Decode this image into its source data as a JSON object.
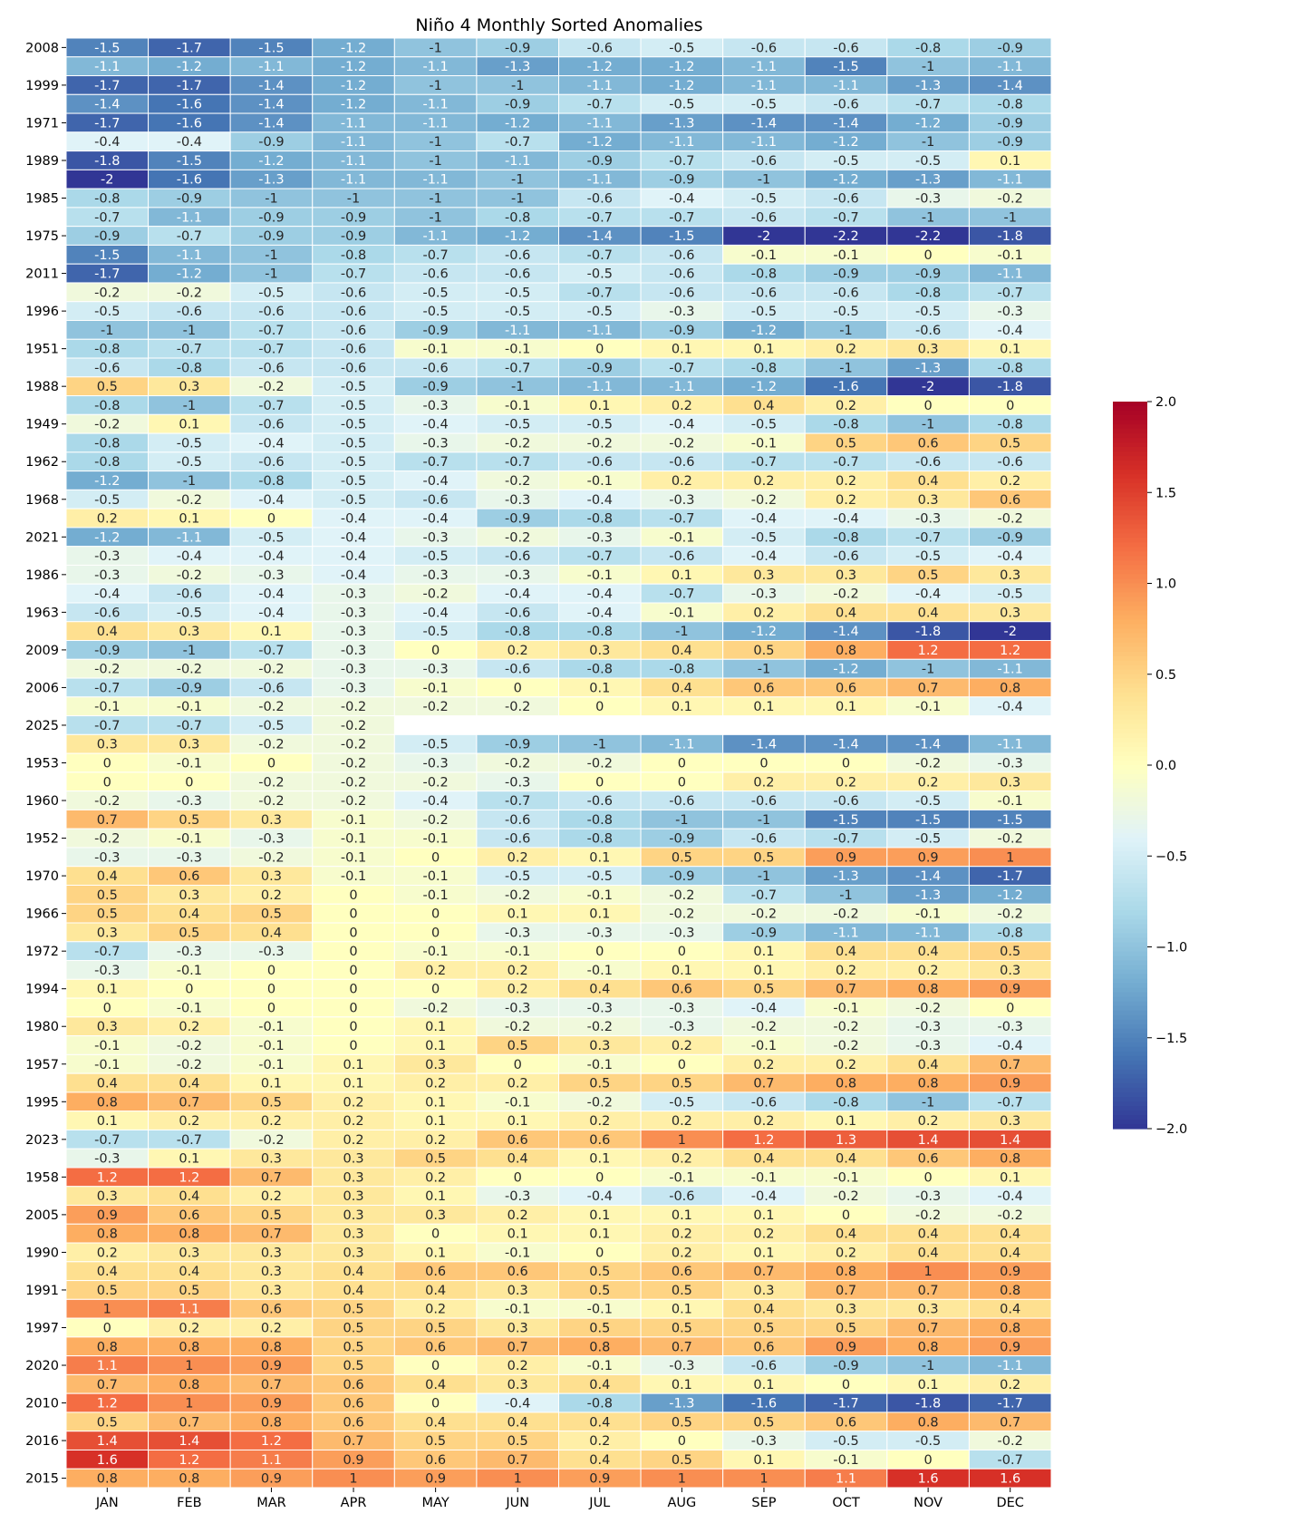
{
  "chart_data": {
    "type": "heatmap",
    "title": "Niño 4 Monthly Sorted Anomalies",
    "columns": [
      "JAN",
      "FEB",
      "MAR",
      "APR",
      "MAY",
      "JUN",
      "JUL",
      "AUG",
      "SEP",
      "OCT",
      "NOV",
      "DEC"
    ],
    "row_labels": [
      "2008",
      "",
      "1999",
      "",
      "1971",
      "",
      "1989",
      "",
      "1985",
      "",
      "1975",
      "",
      "2011",
      "",
      "1996",
      "",
      "1951",
      "",
      "1988",
      "",
      "1949",
      "",
      "1962",
      "",
      "1968",
      "",
      "2021",
      "",
      "1986",
      "",
      "1963",
      "",
      "2009",
      "",
      "2006",
      "",
      "2025",
      "",
      "1953",
      "",
      "1960",
      "",
      "1952",
      "",
      "1970",
      "",
      "1966",
      "",
      "1972",
      "",
      "1994",
      "",
      "1980",
      "",
      "1957",
      "",
      "1995",
      "",
      "2023",
      "",
      "1958",
      "",
      "2005",
      "",
      "1990",
      "",
      "1991",
      "",
      "1997",
      "",
      "2020",
      "",
      "2010",
      "",
      "2016",
      "",
      "2015"
    ],
    "values": [
      [
        -1.5,
        -1.7,
        -1.5,
        -1.2,
        -1,
        -0.9,
        -0.6,
        -0.5,
        -0.6,
        -0.6,
        -0.8,
        -0.9
      ],
      [
        -1.1,
        -1.2,
        -1.1,
        -1.2,
        -1.1,
        -1.3,
        -1.2,
        -1.2,
        -1.1,
        -1.5,
        -1,
        -1.1
      ],
      [
        -1.7,
        -1.7,
        -1.4,
        -1.2,
        -1,
        -1,
        -1.1,
        -1.2,
        -1.1,
        -1.1,
        -1.3,
        -1.4
      ],
      [
        -1.4,
        -1.6,
        -1.4,
        -1.2,
        -1.1,
        -0.9,
        -0.7,
        -0.5,
        -0.5,
        -0.6,
        -0.7,
        -0.8
      ],
      [
        -1.7,
        -1.6,
        -1.4,
        -1.1,
        -1.1,
        -1.2,
        -1.1,
        -1.3,
        -1.4,
        -1.4,
        -1.2,
        -0.9
      ],
      [
        -0.4,
        -0.4,
        -0.9,
        -1.1,
        -1,
        -0.7,
        -1.2,
        -1.1,
        -1.1,
        -1.2,
        -1,
        -0.9
      ],
      [
        -1.8,
        -1.5,
        -1.2,
        -1.1,
        -1,
        -1.1,
        -0.9,
        -0.7,
        -0.6,
        -0.5,
        -0.5,
        0.1
      ],
      [
        -2,
        -1.6,
        -1.3,
        -1.1,
        -1.1,
        -1,
        -1.1,
        -0.9,
        -1,
        -1.2,
        -1.3,
        -1.1
      ],
      [
        -0.8,
        -0.9,
        -1,
        -1,
        -1,
        -1,
        -0.6,
        -0.4,
        -0.5,
        -0.6,
        -0.3,
        -0.2
      ],
      [
        -0.7,
        -1.1,
        -0.9,
        -0.9,
        -1,
        -0.8,
        -0.7,
        -0.7,
        -0.6,
        -0.7,
        -1,
        -1
      ],
      [
        -0.9,
        -0.7,
        -0.9,
        -0.9,
        -1.1,
        -1.2,
        -1.4,
        -1.5,
        -2,
        -2.2,
        -2.2,
        -1.8
      ],
      [
        -1.5,
        -1.1,
        -1,
        -0.8,
        -0.7,
        -0.6,
        -0.7,
        -0.6,
        -0.1,
        -0.1,
        0,
        -0.1
      ],
      [
        -1.7,
        -1.2,
        -1,
        -0.7,
        -0.6,
        -0.6,
        -0.5,
        -0.6,
        -0.8,
        -0.9,
        -0.9,
        -1.1
      ],
      [
        -0.2,
        -0.2,
        -0.5,
        -0.6,
        -0.5,
        -0.5,
        -0.7,
        -0.6,
        -0.6,
        -0.6,
        -0.8,
        -0.7
      ],
      [
        -0.5,
        -0.6,
        -0.6,
        -0.6,
        -0.5,
        -0.5,
        -0.5,
        -0.3,
        -0.5,
        -0.5,
        -0.5,
        -0.3
      ],
      [
        -1,
        -1,
        -0.7,
        -0.6,
        -0.9,
        -1.1,
        -1.1,
        -0.9,
        -1.2,
        -1,
        -0.6,
        -0.4
      ],
      [
        -0.8,
        -0.7,
        -0.7,
        -0.6,
        -0.1,
        -0.1,
        0,
        0.1,
        0.1,
        0.2,
        0.3,
        0.1
      ],
      [
        -0.6,
        -0.8,
        -0.6,
        -0.6,
        -0.6,
        -0.7,
        -0.9,
        -0.7,
        -0.8,
        -1,
        -1.3,
        -0.8
      ],
      [
        0.5,
        0.3,
        -0.2,
        -0.5,
        -0.9,
        -1,
        -1.1,
        -1.1,
        -1.2,
        -1.6,
        -2,
        -1.8
      ],
      [
        -0.8,
        -1,
        -0.7,
        -0.5,
        -0.3,
        -0.1,
        0.1,
        0.2,
        0.4,
        0.2,
        0,
        0
      ],
      [
        -0.2,
        0.1,
        -0.6,
        -0.5,
        -0.4,
        -0.5,
        -0.5,
        -0.4,
        -0.5,
        -0.8,
        -1,
        -0.8
      ],
      [
        -0.8,
        -0.5,
        -0.4,
        -0.5,
        -0.3,
        -0.2,
        -0.2,
        -0.2,
        -0.1,
        0.5,
        0.6,
        0.5
      ],
      [
        -0.8,
        -0.5,
        -0.6,
        -0.5,
        -0.7,
        -0.7,
        -0.6,
        -0.6,
        -0.7,
        -0.7,
        -0.6,
        -0.6
      ],
      [
        -1.2,
        -1,
        -0.8,
        -0.5,
        -0.4,
        -0.2,
        -0.1,
        0.2,
        0.2,
        0.2,
        0.4,
        0.2
      ],
      [
        -0.5,
        -0.2,
        -0.4,
        -0.5,
        -0.6,
        -0.3,
        -0.4,
        -0.3,
        -0.2,
        0.2,
        0.3,
        0.6
      ],
      [
        0.2,
        0.1,
        0,
        -0.4,
        -0.4,
        -0.9,
        -0.8,
        -0.7,
        -0.4,
        -0.4,
        -0.3,
        -0.2
      ],
      [
        -1.2,
        -1.1,
        -0.5,
        -0.4,
        -0.3,
        -0.2,
        -0.3,
        -0.1,
        -0.5,
        -0.8,
        -0.7,
        -0.9
      ],
      [
        -0.3,
        -0.4,
        -0.4,
        -0.4,
        -0.5,
        -0.6,
        -0.7,
        -0.6,
        -0.4,
        -0.6,
        -0.5,
        -0.4
      ],
      [
        -0.3,
        -0.2,
        -0.3,
        -0.4,
        -0.3,
        -0.3,
        -0.1,
        0.1,
        0.3,
        0.3,
        0.5,
        0.3
      ],
      [
        -0.4,
        -0.6,
        -0.4,
        -0.3,
        -0.2,
        -0.4,
        -0.4,
        -0.7,
        -0.3,
        -0.2,
        -0.4,
        -0.5
      ],
      [
        -0.6,
        -0.5,
        -0.4,
        -0.3,
        -0.4,
        -0.6,
        -0.4,
        -0.1,
        0.2,
        0.4,
        0.4,
        0.3
      ],
      [
        0.4,
        0.3,
        0.1,
        -0.3,
        -0.5,
        -0.8,
        -0.8,
        -1,
        -1.2,
        -1.4,
        -1.8,
        -2
      ],
      [
        -0.9,
        -1,
        -0.7,
        -0.3,
        0,
        0.2,
        0.3,
        0.4,
        0.5,
        0.8,
        1.2,
        1.2
      ],
      [
        -0.2,
        -0.2,
        -0.2,
        -0.3,
        -0.3,
        -0.6,
        -0.8,
        -0.8,
        -1,
        -1.2,
        -1,
        -1.1
      ],
      [
        -0.7,
        -0.9,
        -0.6,
        -0.3,
        -0.1,
        0,
        0.1,
        0.4,
        0.6,
        0.6,
        0.7,
        0.8
      ],
      [
        -0.1,
        -0.1,
        -0.2,
        -0.2,
        -0.2,
        -0.2,
        0,
        0.1,
        0.1,
        0.1,
        -0.1,
        -0.4
      ],
      [
        -0.7,
        -0.7,
        -0.5,
        -0.2,
        null,
        null,
        null,
        null,
        null,
        null,
        null,
        null
      ],
      [
        0.3,
        0.3,
        -0.2,
        -0.2,
        -0.5,
        -0.9,
        -1,
        -1.1,
        -1.4,
        -1.4,
        -1.4,
        -1.1
      ],
      [
        0,
        -0.1,
        0,
        -0.2,
        -0.3,
        -0.2,
        -0.2,
        0,
        0,
        0,
        -0.2,
        -0.3
      ],
      [
        0,
        0,
        -0.2,
        -0.2,
        -0.2,
        -0.3,
        0,
        0,
        0.2,
        0.2,
        0.2,
        0.3
      ],
      [
        -0.2,
        -0.3,
        -0.2,
        -0.2,
        -0.4,
        -0.7,
        -0.6,
        -0.6,
        -0.6,
        -0.6,
        -0.5,
        -0.1
      ],
      [
        0.7,
        0.5,
        0.3,
        -0.1,
        -0.2,
        -0.6,
        -0.8,
        -1,
        -1,
        -1.5,
        -1.5,
        -1.5
      ],
      [
        -0.2,
        -0.1,
        -0.3,
        -0.1,
        -0.1,
        -0.6,
        -0.8,
        -0.9,
        -0.6,
        -0.7,
        -0.5,
        -0.2
      ],
      [
        -0.3,
        -0.3,
        -0.2,
        -0.1,
        0,
        0.2,
        0.1,
        0.5,
        0.5,
        0.9,
        0.9,
        1
      ],
      [
        0.4,
        0.6,
        0.3,
        -0.1,
        -0.1,
        -0.5,
        -0.5,
        -0.9,
        -1,
        -1.3,
        -1.4,
        -1.7
      ],
      [
        0.5,
        0.3,
        0.2,
        0,
        -0.1,
        -0.2,
        -0.1,
        -0.2,
        -0.7,
        -1,
        -1.3,
        -1.2
      ],
      [
        0.5,
        0.4,
        0.5,
        0,
        0,
        0.1,
        0.1,
        -0.2,
        -0.2,
        -0.2,
        -0.1,
        -0.2
      ],
      [
        0.3,
        0.5,
        0.4,
        0,
        0,
        -0.3,
        -0.3,
        -0.3,
        -0.9,
        -1.1,
        -1.1,
        -0.8
      ],
      [
        -0.7,
        -0.3,
        -0.3,
        0,
        -0.1,
        -0.1,
        0,
        0,
        0.1,
        0.4,
        0.4,
        0.5
      ],
      [
        -0.3,
        -0.1,
        0,
        0,
        0.2,
        0.2,
        -0.1,
        0.1,
        0.1,
        0.2,
        0.2,
        0.3
      ],
      [
        0.1,
        0,
        0,
        0,
        0,
        0.2,
        0.4,
        0.6,
        0.5,
        0.7,
        0.8,
        0.9
      ],
      [
        0,
        -0.1,
        0,
        0,
        -0.2,
        -0.3,
        -0.3,
        -0.3,
        -0.4,
        -0.1,
        -0.2,
        0
      ],
      [
        0.3,
        0.2,
        -0.1,
        0,
        0.1,
        -0.2,
        -0.2,
        -0.3,
        -0.2,
        -0.2,
        -0.3,
        -0.3
      ],
      [
        -0.1,
        -0.2,
        -0.1,
        0,
        0.1,
        0.5,
        0.3,
        0.2,
        -0.1,
        -0.2,
        -0.3,
        -0.4
      ],
      [
        -0.1,
        -0.2,
        -0.1,
        0.1,
        0.3,
        0,
        -0.1,
        0,
        0.2,
        0.2,
        0.4,
        0.7
      ],
      [
        0.4,
        0.4,
        0.1,
        0.1,
        0.2,
        0.2,
        0.5,
        0.5,
        0.7,
        0.8,
        0.8,
        0.9
      ],
      [
        0.8,
        0.7,
        0.5,
        0.2,
        0.1,
        -0.1,
        -0.2,
        -0.5,
        -0.6,
        -0.8,
        -1,
        -0.7
      ],
      [
        0.1,
        0.2,
        0.2,
        0.2,
        0.1,
        0.1,
        0.2,
        0.2,
        0.2,
        0.1,
        0.2,
        0.3
      ],
      [
        -0.7,
        -0.7,
        -0.2,
        0.2,
        0.2,
        0.6,
        0.6,
        1,
        1.2,
        1.3,
        1.4,
        1.4
      ],
      [
        -0.3,
        0.1,
        0.3,
        0.3,
        0.5,
        0.4,
        0.1,
        0.2,
        0.4,
        0.4,
        0.6,
        0.8
      ],
      [
        1.2,
        1.2,
        0.7,
        0.3,
        0.2,
        0,
        0,
        -0.1,
        -0.1,
        -0.1,
        0,
        0.1
      ],
      [
        0.3,
        0.4,
        0.2,
        0.3,
        0.1,
        -0.3,
        -0.4,
        -0.6,
        -0.4,
        -0.2,
        -0.3,
        -0.4
      ],
      [
        0.9,
        0.6,
        0.5,
        0.3,
        0.3,
        0.2,
        0.1,
        0.1,
        0.1,
        0,
        -0.2,
        -0.2
      ],
      [
        0.8,
        0.8,
        0.7,
        0.3,
        0,
        0.1,
        0.1,
        0.2,
        0.2,
        0.4,
        0.4,
        0.4
      ],
      [
        0.2,
        0.3,
        0.3,
        0.3,
        0.1,
        -0.1,
        0,
        0.2,
        0.1,
        0.2,
        0.4,
        0.4
      ],
      [
        0.4,
        0.4,
        0.3,
        0.4,
        0.6,
        0.6,
        0.5,
        0.6,
        0.7,
        0.8,
        1,
        0.9
      ],
      [
        0.5,
        0.5,
        0.3,
        0.4,
        0.4,
        0.3,
        0.5,
        0.5,
        0.3,
        0.7,
        0.7,
        0.8
      ],
      [
        1,
        1.1,
        0.6,
        0.5,
        0.2,
        -0.1,
        -0.1,
        0.1,
        0.4,
        0.3,
        0.3,
        0.4
      ],
      [
        0,
        0.2,
        0.2,
        0.5,
        0.5,
        0.3,
        0.5,
        0.5,
        0.5,
        0.5,
        0.7,
        0.8
      ],
      [
        0.8,
        0.8,
        0.8,
        0.5,
        0.6,
        0.7,
        0.8,
        0.7,
        0.6,
        0.9,
        0.8,
        0.9
      ],
      [
        1.1,
        1,
        0.9,
        0.5,
        0,
        0.2,
        -0.1,
        -0.3,
        -0.6,
        -0.9,
        -1,
        -1.1
      ],
      [
        0.7,
        0.8,
        0.7,
        0.6,
        0.4,
        0.3,
        0.4,
        0.1,
        0.1,
        0,
        0.1,
        0.2
      ],
      [
        1.2,
        1,
        0.9,
        0.6,
        0,
        -0.4,
        -0.8,
        -1.3,
        -1.6,
        -1.7,
        -1.8,
        -1.7
      ],
      [
        0.5,
        0.7,
        0.8,
        0.6,
        0.4,
        0.4,
        0.4,
        0.5,
        0.5,
        0.6,
        0.8,
        0.7
      ],
      [
        1.4,
        1.4,
        1.2,
        0.7,
        0.5,
        0.5,
        0.2,
        0,
        -0.3,
        -0.5,
        -0.5,
        -0.2
      ],
      [
        1.6,
        1.2,
        1.1,
        0.9,
        0.6,
        0.7,
        0.4,
        0.5,
        0.1,
        -0.1,
        0,
        -0.7
      ],
      [
        0.8,
        0.8,
        0.9,
        1,
        0.9,
        1,
        0.9,
        1,
        1,
        1.1,
        1.6,
        1.6
      ]
    ],
    "colorbar": {
      "range": [
        -2,
        2
      ],
      "ticks": [
        2.0,
        1.5,
        1.0,
        0.5,
        0.0,
        -0.5,
        -1.0,
        -1.5,
        -2.0
      ],
      "tick_labels": [
        "2.0",
        "1.5",
        "1.0",
        "0.5",
        "0.0",
        "−0.5",
        "−1.0",
        "−1.5",
        "−2.0"
      ],
      "colormap": "RdYlBu_r"
    }
  }
}
